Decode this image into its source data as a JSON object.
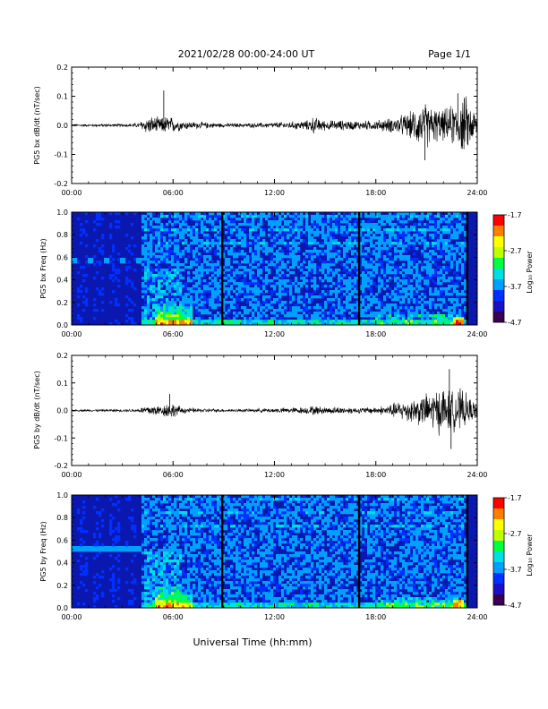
{
  "header": {
    "date_range": "2021/02/28  00:00-24:00 UT",
    "page": "Page 1/1"
  },
  "common_xlabel": "Universal Time (hh:mm)",
  "colors": {
    "trace": "#000000",
    "colormap": [
      "#3a0050",
      "#1a10c8",
      "#0030ff",
      "#00a0ff",
      "#00e0e0",
      "#00ff40",
      "#c0ff00",
      "#ffff00",
      "#ff8000",
      "#ff0000"
    ]
  },
  "chart_data": [
    {
      "type": "line",
      "panel": "bx-wave",
      "ylabel": "PG5 bx dB/dt (nT/sec)",
      "x_range_hours": [
        0,
        24
      ],
      "xticks": [
        "00:00",
        "06:00",
        "12:00",
        "18:00",
        "24:00"
      ],
      "ylim": [
        -0.2,
        0.2
      ],
      "yticks": [
        "-0.2",
        "-0.1",
        "0.0",
        "0.1",
        "0.2"
      ],
      "envelope": {
        "x_hours": [
          0,
          1,
          2,
          3,
          4,
          4.3,
          4.8,
          5.3,
          5.7,
          6,
          6.5,
          7,
          8,
          9,
          10,
          11,
          12,
          13,
          14,
          14.2,
          15,
          16,
          17,
          18,
          18.5,
          19,
          19.5,
          20,
          20.5,
          21,
          21.5,
          22,
          22.5,
          23,
          23.3,
          23.6,
          24
        ],
        "amplitude": [
          0.005,
          0.005,
          0.006,
          0.006,
          0.01,
          0.03,
          0.035,
          0.03,
          0.04,
          0.03,
          0.02,
          0.015,
          0.012,
          0.008,
          0.008,
          0.01,
          0.012,
          0.015,
          0.02,
          0.035,
          0.02,
          0.02,
          0.018,
          0.02,
          0.025,
          0.03,
          0.04,
          0.05,
          0.08,
          0.09,
          0.07,
          0.06,
          0.08,
          0.1,
          0.12,
          0.08,
          0.05
        ]
      },
      "spikes": [
        {
          "x_hour": 5.45,
          "y": 0.12
        },
        {
          "x_hour": 22.85,
          "y": 0.11
        },
        {
          "x_hour": 20.9,
          "y": -0.12
        }
      ]
    },
    {
      "type": "heatmap",
      "panel": "bx-spectrogram",
      "ylabel": "PG5 bx Freq (Hz)",
      "x_range_hours": [
        0,
        24
      ],
      "xticks": [
        "00:00",
        "06:00",
        "12:00",
        "18:00",
        "24:00"
      ],
      "ylim": [
        0.0,
        1.0
      ],
      "yticks": [
        "0.0",
        "0.2",
        "0.4",
        "0.6",
        "0.8",
        "1.0"
      ],
      "colorbar": {
        "label": "Log₁₀ Power",
        "range": [
          -4.7,
          -1.7
        ],
        "ticks": [
          "-1.7",
          "-2.7",
          "-3.7",
          "-4.7"
        ]
      },
      "gap_lines_hours": [
        8.9,
        17.0,
        23.4
      ],
      "quiet_bands_until_hour": 4.1
    },
    {
      "type": "line",
      "panel": "by-wave",
      "ylabel": "PG5 by dB/dt (nT/sec)",
      "x_range_hours": [
        0,
        24
      ],
      "xticks": [
        "00:00",
        "06:00",
        "12:00",
        "18:00",
        "24:00"
      ],
      "ylim": [
        -0.2,
        0.2
      ],
      "yticks": [
        "-0.2",
        "-0.1",
        "0.0",
        "0.1",
        "0.2"
      ],
      "envelope": {
        "x_hours": [
          0,
          1,
          2,
          3,
          4,
          4.3,
          4.8,
          5.3,
          5.7,
          6,
          6.5,
          7,
          8,
          9,
          10,
          11,
          12,
          13,
          14,
          14.2,
          15,
          16,
          17,
          18,
          18.5,
          19,
          19.5,
          20,
          20.5,
          21,
          21.5,
          22,
          22.5,
          23,
          23.3,
          23.6,
          24
        ],
        "amplitude": [
          0.004,
          0.004,
          0.005,
          0.005,
          0.008,
          0.02,
          0.025,
          0.02,
          0.035,
          0.03,
          0.015,
          0.01,
          0.008,
          0.006,
          0.006,
          0.008,
          0.01,
          0.012,
          0.015,
          0.02,
          0.015,
          0.015,
          0.012,
          0.015,
          0.02,
          0.03,
          0.04,
          0.05,
          0.06,
          0.07,
          0.09,
          0.1,
          0.08,
          0.09,
          0.07,
          0.05,
          0.03
        ]
      },
      "spikes": [
        {
          "x_hour": 22.35,
          "y": 0.15
        },
        {
          "x_hour": 22.45,
          "y": -0.14
        },
        {
          "x_hour": 5.8,
          "y": 0.06
        }
      ]
    },
    {
      "type": "heatmap",
      "panel": "by-spectrogram",
      "ylabel": "PG5 by Freq (Hz)",
      "x_range_hours": [
        0,
        24
      ],
      "xticks": [
        "00:00",
        "06:00",
        "12:00",
        "18:00",
        "24:00"
      ],
      "ylim": [
        0.0,
        1.0
      ],
      "yticks": [
        "0.0",
        "0.2",
        "0.4",
        "0.6",
        "0.8",
        "1.0"
      ],
      "colorbar": {
        "label": "Log₁₀ Power",
        "range": [
          -4.7,
          -1.7
        ],
        "ticks": [
          "-1.7",
          "-2.7",
          "-3.7",
          "-4.7"
        ]
      },
      "gap_lines_hours": [
        8.9,
        17.0,
        23.4
      ],
      "quiet_bands_until_hour": 4.1
    }
  ]
}
